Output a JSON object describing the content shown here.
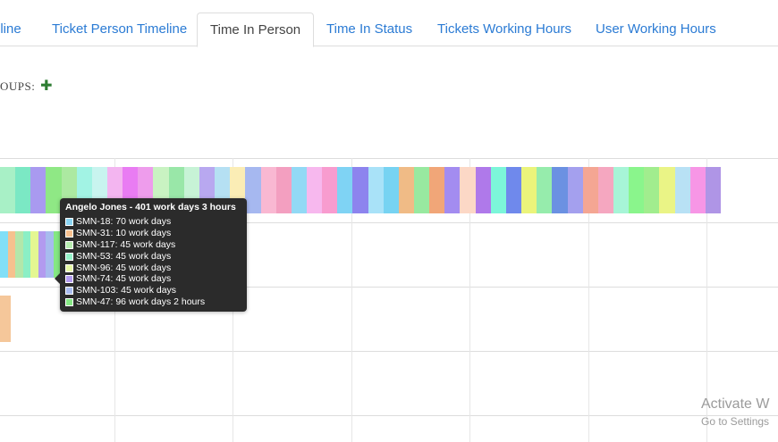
{
  "tabs": [
    {
      "label": "eline",
      "active": false
    },
    {
      "label": "Ticket Person Timeline",
      "active": false
    },
    {
      "label": "Time In Person",
      "active": true
    },
    {
      "label": "Time In Status",
      "active": false
    },
    {
      "label": "Tickets Working Hours",
      "active": false
    },
    {
      "label": "User Working Hours",
      "active": false
    }
  ],
  "groups": {
    "label": "OUPS:",
    "add_icon": "plus-icon"
  },
  "chart_data": {
    "type": "bar",
    "orientation": "horizontal",
    "stacked": true,
    "grid": true,
    "rows": [
      {
        "segments": [
          "#a8f0c6",
          "#7be8c4",
          "#a99af0",
          "#8fe885",
          "#ace9a1",
          "#a2f3e4",
          "#c8f4ef",
          "#f3b5f0",
          "#e97cf3",
          "#ee9cec",
          "#c9f3c2",
          "#99e7a8",
          "#c7f3d6",
          "#b8a8f0",
          "#b5e0f3",
          "#fbedb5",
          "#a6b8f0",
          "#f9b8d2",
          "#f39fc0",
          "#92d9f5",
          "#f7b8ee",
          "#f89ccf",
          "#7fd3f4",
          "#8d84ee",
          "#a9e2f8",
          "#77d3f2",
          "#f0bb86",
          "#98e9a0",
          "#f1a678",
          "#a38cf0",
          "#fcd8c6",
          "#af79ea",
          "#7cf6d9",
          "#6f89ec",
          "#ebf47b",
          "#96ecac",
          "#6b91e2",
          "#a4a0ee",
          "#f4a693",
          "#f5a7c0",
          "#a7f5d7",
          "#8af58c",
          "#a1ed8e",
          "#eaf486",
          "#b8e1f5",
          "#f796e6",
          "#af95e6"
        ]
      },
      {
        "segments": [
          "#81dff7",
          "#f6c18e",
          "#b3e7aa",
          "#8befc5",
          "#e4f792",
          "#b29aef",
          "#a7bbee",
          "#84e882"
        ]
      },
      {
        "segments": [
          "#f5c79a"
        ]
      }
    ]
  },
  "tooltip": {
    "title": "Angelo Jones - 401 work days 3 hours",
    "items": [
      {
        "label": "SMN-18: 70 work days",
        "color": "#8ad4f2"
      },
      {
        "label": "SMN-31: 10 work days",
        "color": "#f7c08e"
      },
      {
        "label": "SMN-117: 45 work days",
        "color": "#b7ecaf"
      },
      {
        "label": "SMN-53: 45 work days",
        "color": "#96f2c9"
      },
      {
        "label": "SMN-96: 45 work days",
        "color": "#e6f7a4"
      },
      {
        "label": "SMN-74: 45 work days",
        "color": "#b39cef"
      },
      {
        "label": "SMN-103: 45 work days",
        "color": "#a9bcef"
      },
      {
        "label": "SMN-47: 96 work days 2 hours",
        "color": "#86e885"
      }
    ]
  },
  "watermark": {
    "title": "Activate W",
    "subtitle": "Go to Settings"
  }
}
